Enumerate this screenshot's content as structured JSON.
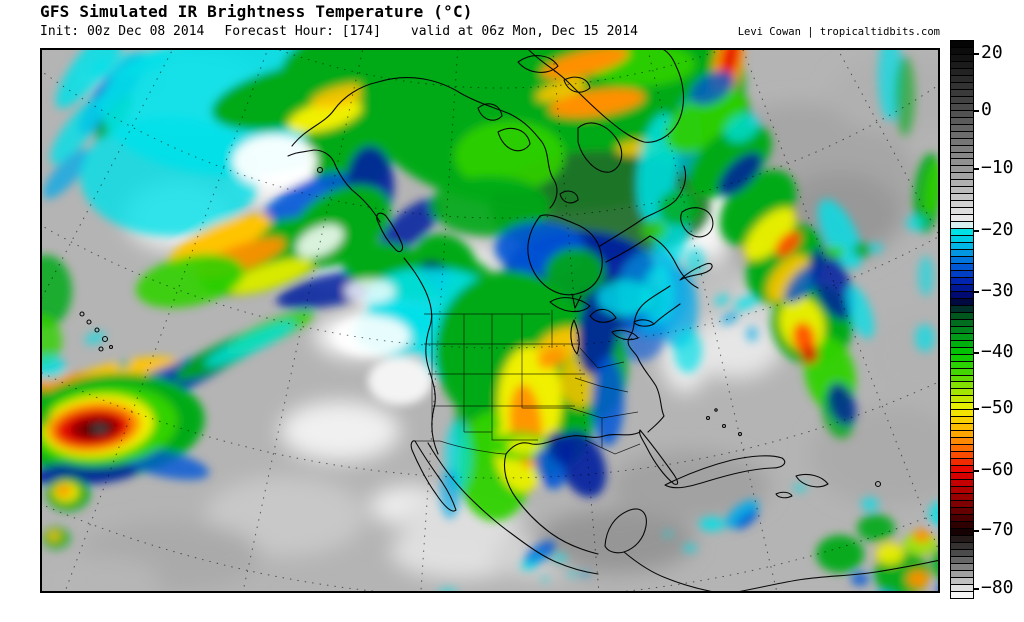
{
  "header": {
    "title": "GFS Simulated IR Brightness Temperature (°C)",
    "init": "Init: 00z Dec 08 2014",
    "forecast_hour": "Forecast Hour: [174]",
    "valid": "valid at 06z Mon, Dec 15 2014",
    "credit": "Levi Cowan | tropicaltidbits.com"
  },
  "colorbar": {
    "orientation": "vertical",
    "top_value": 20,
    "bottom_value": -80,
    "segment_count": 80,
    "ticks": [
      {
        "label": "20",
        "pos": 0.023
      },
      {
        "label": "0",
        "pos": 0.126
      },
      {
        "label": "-10",
        "pos": 0.23
      },
      {
        "label": "-20",
        "pos": 0.341
      },
      {
        "label": "-30",
        "pos": 0.451
      },
      {
        "label": "-40",
        "pos": 0.56
      },
      {
        "label": "-50",
        "pos": 0.661
      },
      {
        "label": "-60",
        "pos": 0.772
      },
      {
        "label": "-70",
        "pos": 0.88
      },
      {
        "label": "-80",
        "pos": 0.984
      }
    ],
    "stops": [
      [
        0.0,
        "#000000"
      ],
      [
        0.126,
        "#4e4e4e"
      ],
      [
        0.23,
        "#989898"
      ],
      [
        0.33,
        "#f2f2f2"
      ],
      [
        0.341,
        "#00e6e6"
      ],
      [
        0.37,
        "#00b4e6"
      ],
      [
        0.4,
        "#0064dc"
      ],
      [
        0.43,
        "#0028b4"
      ],
      [
        0.455,
        "#000a78"
      ],
      [
        0.47,
        "#000a3c"
      ],
      [
        0.49,
        "#00501e"
      ],
      [
        0.525,
        "#00911e"
      ],
      [
        0.56,
        "#00c800"
      ],
      [
        0.6,
        "#50d800"
      ],
      [
        0.63,
        "#a0e600"
      ],
      [
        0.661,
        "#f0f000"
      ],
      [
        0.7,
        "#ffb400"
      ],
      [
        0.735,
        "#ff6400"
      ],
      [
        0.772,
        "#e60000"
      ],
      [
        0.81,
        "#aa0000"
      ],
      [
        0.845,
        "#640000"
      ],
      [
        0.88,
        "#140000"
      ],
      [
        0.912,
        "#3c3c3c"
      ],
      [
        0.944,
        "#828282"
      ],
      [
        0.984,
        "#e6e6e6"
      ],
      [
        1.0,
        "#ffffff"
      ]
    ]
  },
  "palette": {
    "white": "#ffffff",
    "cyan": "#00e0e8",
    "azure": "#00a8e8",
    "blue": "#0055d8",
    "navy": "#0020a0",
    "dnavy": "#000a50",
    "dgreen": "#1e6e28",
    "green": "#00aa14",
    "bgreen": "#30d200",
    "ygreen": "#9ae600",
    "yellow": "#f0f000",
    "gold": "#ffc400",
    "orange": "#ff9000",
    "dorange": "#ff5200",
    "red": "#e61000",
    "dred": "#8c0000",
    "maroon": "#300000",
    "core": "#4a4a4a",
    "map_base": "#b4b4b4",
    "coast_line": "#000000"
  }
}
